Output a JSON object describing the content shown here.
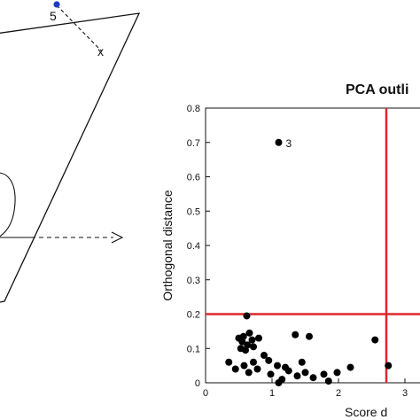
{
  "left_panel": {
    "point_label": "5",
    "projection_marker": "x",
    "point_color": "#1f3cc8"
  },
  "chart_data": {
    "type": "scatter",
    "title": "PCA outli",
    "xlabel": "Score d",
    "ylabel": "Orthogonal distance",
    "xlim": [
      0,
      3.3
    ],
    "ylim": [
      0,
      0.8
    ],
    "x_ticks": [
      "0",
      "1",
      "2",
      "3"
    ],
    "y_ticks": [
      "0",
      "0.1",
      "0.2",
      "0.3",
      "0.4",
      "0.5",
      "0.6",
      "0.7",
      "0.8"
    ],
    "grid": false,
    "cutoffs": {
      "score_distance": 2.72,
      "orthogonal_distance": 0.2,
      "color": "#e0262b"
    },
    "labeled_points": [
      {
        "label": "3",
        "x": 1.1,
        "y": 0.7
      }
    ],
    "points": [
      {
        "x": 0.62,
        "y": 0.195
      },
      {
        "x": 1.1,
        "y": 0.7
      },
      {
        "x": 0.5,
        "y": 0.13
      },
      {
        "x": 0.57,
        "y": 0.135
      },
      {
        "x": 0.66,
        "y": 0.145
      },
      {
        "x": 0.55,
        "y": 0.12
      },
      {
        "x": 0.63,
        "y": 0.11
      },
      {
        "x": 0.7,
        "y": 0.125
      },
      {
        "x": 0.53,
        "y": 0.1
      },
      {
        "x": 0.6,
        "y": 0.095
      },
      {
        "x": 0.8,
        "y": 0.13
      },
      {
        "x": 0.72,
        "y": 0.105
      },
      {
        "x": 0.35,
        "y": 0.06
      },
      {
        "x": 0.45,
        "y": 0.04
      },
      {
        "x": 0.58,
        "y": 0.05
      },
      {
        "x": 0.65,
        "y": 0.03
      },
      {
        "x": 0.72,
        "y": 0.06
      },
      {
        "x": 0.78,
        "y": 0.04
      },
      {
        "x": 0.88,
        "y": 0.08
      },
      {
        "x": 0.95,
        "y": 0.065
      },
      {
        "x": 0.98,
        "y": 0.025
      },
      {
        "x": 1.08,
        "y": 0.05
      },
      {
        "x": 1.1,
        "y": 0.0
      },
      {
        "x": 1.15,
        "y": 0.01
      },
      {
        "x": 1.2,
        "y": 0.045
      },
      {
        "x": 1.25,
        "y": 0.035
      },
      {
        "x": 1.35,
        "y": 0.14
      },
      {
        "x": 1.38,
        "y": 0.02
      },
      {
        "x": 1.45,
        "y": 0.06
      },
      {
        "x": 1.5,
        "y": 0.03
      },
      {
        "x": 1.56,
        "y": 0.135
      },
      {
        "x": 1.62,
        "y": 0.015
      },
      {
        "x": 1.78,
        "y": 0.025
      },
      {
        "x": 1.85,
        "y": 0.005
      },
      {
        "x": 1.98,
        "y": 0.03
      },
      {
        "x": 2.18,
        "y": 0.045
      },
      {
        "x": 2.55,
        "y": 0.125
      },
      {
        "x": 2.75,
        "y": 0.05
      }
    ]
  }
}
